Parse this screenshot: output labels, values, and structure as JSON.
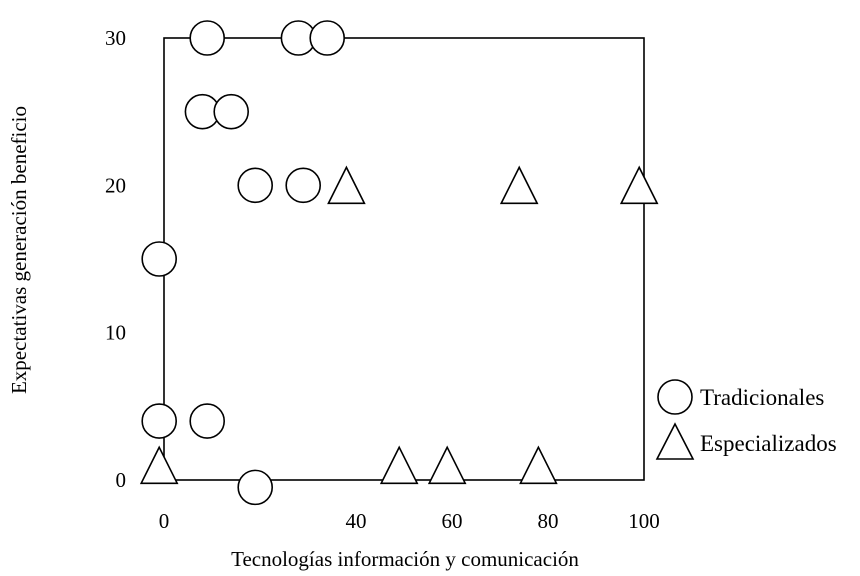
{
  "chart_data": {
    "type": "scatter",
    "title": "",
    "xlabel": "Tecnologías información y comunicación",
    "ylabel": "Expectativas generación beneficio",
    "xlim": [
      0,
      100
    ],
    "ylim": [
      0,
      30
    ],
    "x_ticks": [
      {
        "value": 0,
        "label": "0"
      },
      {
        "value": 40,
        "label": "40"
      },
      {
        "value": 60,
        "label": "60"
      },
      {
        "value": 80,
        "label": "80"
      },
      {
        "value": 100,
        "label": "100"
      }
    ],
    "y_ticks": [
      {
        "value": 0,
        "label": "0"
      },
      {
        "value": 10,
        "label": "10"
      },
      {
        "value": 20,
        "label": "20"
      },
      {
        "value": 30,
        "label": "30"
      }
    ],
    "grid": false,
    "legend_position": "right",
    "series": [
      {
        "name": "Tradicionales",
        "marker": "circle",
        "points": [
          {
            "x": 9,
            "y": 30
          },
          {
            "x": 28,
            "y": 30
          },
          {
            "x": 34,
            "y": 30
          },
          {
            "x": 8,
            "y": 25
          },
          {
            "x": 14,
            "y": 25
          },
          {
            "x": 19,
            "y": 20
          },
          {
            "x": 29,
            "y": 20
          },
          {
            "x": -1,
            "y": 15
          },
          {
            "x": -1,
            "y": 4
          },
          {
            "x": 9,
            "y": 4
          },
          {
            "x": 19,
            "y": -0.5
          }
        ]
      },
      {
        "name": "Especializados",
        "marker": "triangle",
        "points": [
          {
            "x": 38,
            "y": 20
          },
          {
            "x": 74,
            "y": 20
          },
          {
            "x": 99,
            "y": 20
          },
          {
            "x": -1,
            "y": 1
          },
          {
            "x": 49,
            "y": 1
          },
          {
            "x": 59,
            "y": 1
          },
          {
            "x": 78,
            "y": 1
          }
        ]
      }
    ]
  }
}
